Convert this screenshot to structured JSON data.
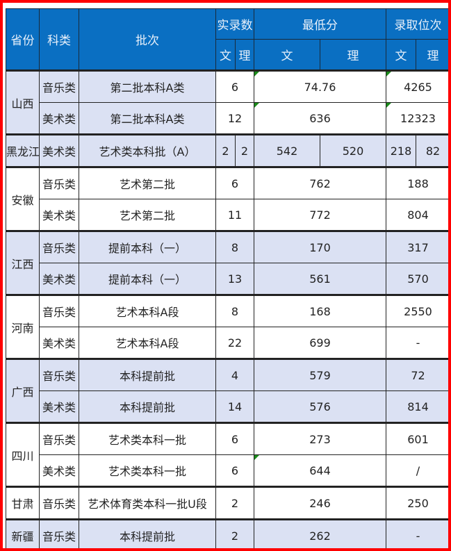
{
  "header": {
    "province": "省份",
    "category": "科类",
    "batch": "批次",
    "admitted": "实录数",
    "min_score": "最低分",
    "rank": "录取位次",
    "wen": "文",
    "li": "理"
  },
  "rows": [
    {
      "province": "山西",
      "span": 2,
      "style": "bl",
      "category": "音乐类",
      "batch": "第二批本科A类",
      "admitted": "6",
      "min_score": "74.76",
      "rank": "4265",
      "flag": true
    },
    {
      "category": "美术类",
      "style": "bl",
      "batch": "第二批本科A类",
      "admitted": "12",
      "min_score": "636",
      "rank": "12323",
      "flag": true
    },
    {
      "province": "黑龙江",
      "span": 1,
      "style": "b",
      "category": "美术类",
      "batch": "艺术类本科批（A）",
      "admitted_wen": "2",
      "admitted_li": "2",
      "min_wen": "542",
      "min_li": "520",
      "rank_wen": "218",
      "rank_li": "82"
    },
    {
      "province": "安徽",
      "span": 2,
      "style": "w",
      "category": "音乐类",
      "batch": "艺术第二批",
      "admitted": "6",
      "min_score": "762",
      "rank": "188"
    },
    {
      "category": "美术类",
      "style": "w",
      "batch": "艺术第二批",
      "admitted": "11",
      "min_score": "772",
      "rank": "804"
    },
    {
      "province": "江西",
      "span": 2,
      "style": "b",
      "category": "音乐类",
      "batch": "提前本科（一）",
      "admitted": "8",
      "min_score": "170",
      "rank": "317"
    },
    {
      "category": "美术类",
      "style": "b",
      "batch": "提前本科（一）",
      "admitted": "13",
      "min_score": "561",
      "rank": "570"
    },
    {
      "province": "河南",
      "span": 2,
      "style": "w",
      "category": "音乐类",
      "batch": "艺术本科A段",
      "admitted": "8",
      "min_score": "168",
      "rank": "2550"
    },
    {
      "category": "美术类",
      "style": "w",
      "batch": "艺术本科A段",
      "admitted": "22",
      "min_score": "699",
      "rank": "-"
    },
    {
      "province": "广西",
      "span": 2,
      "style": "b",
      "category": "音乐类",
      "batch": "本科提前批",
      "admitted": "4",
      "min_score": "579",
      "rank": "72"
    },
    {
      "category": "美术类",
      "style": "b",
      "batch": "本科提前批",
      "admitted": "14",
      "min_score": "576",
      "rank": "814"
    },
    {
      "province": "四川",
      "span": 2,
      "style": "w",
      "category": "音乐类",
      "batch": "艺术类本科一批",
      "admitted": "6",
      "min_score": "273",
      "rank": "601"
    },
    {
      "category": "美术类",
      "style": "w",
      "batch": "艺术类本科一批",
      "admitted": "6",
      "min_score": "644",
      "rank": "/",
      "flag": true
    },
    {
      "province": "甘肃",
      "span": 1,
      "style": "w",
      "category": "音乐类",
      "batch": "艺术体育类本科一批U段",
      "admitted": "2",
      "min_score": "246",
      "rank": "250"
    },
    {
      "province": "新疆",
      "span": 1,
      "style": "b",
      "category": "音乐类",
      "batch": "本科提前批",
      "admitted": "2",
      "min_score": "262",
      "rank": "-"
    }
  ],
  "colors": {
    "header": "#0a6fc2",
    "band": "#dbe1f3",
    "frame": "#ff0000"
  }
}
